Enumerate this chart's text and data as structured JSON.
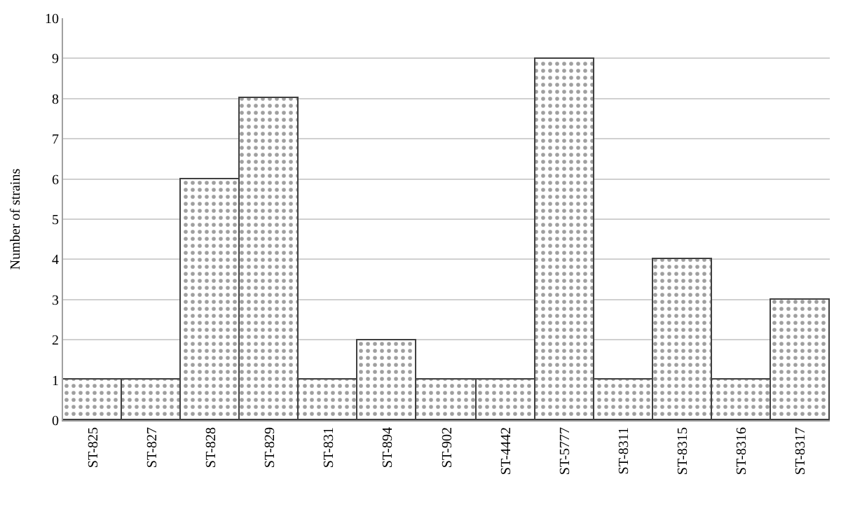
{
  "chart_data": {
    "type": "bar",
    "ylabel": "Number of strains",
    "categories": [
      "ST-825",
      "ST-827",
      "ST-828",
      "ST-829",
      "ST-831",
      "ST-894",
      "ST-902",
      "ST-4442",
      "ST-5777",
      "ST-8311",
      "ST-8315",
      "ST-8316",
      "ST-8317"
    ],
    "values": [
      1,
      1,
      6,
      8,
      1,
      2,
      1,
      1,
      9,
      1,
      4,
      1,
      3
    ],
    "color": "#404040",
    "ylim": [
      0,
      10
    ],
    "yticks": [
      0,
      1,
      2,
      3,
      4,
      5,
      6,
      7,
      8,
      9,
      10
    ],
    "grid": "y",
    "legend": false
  }
}
